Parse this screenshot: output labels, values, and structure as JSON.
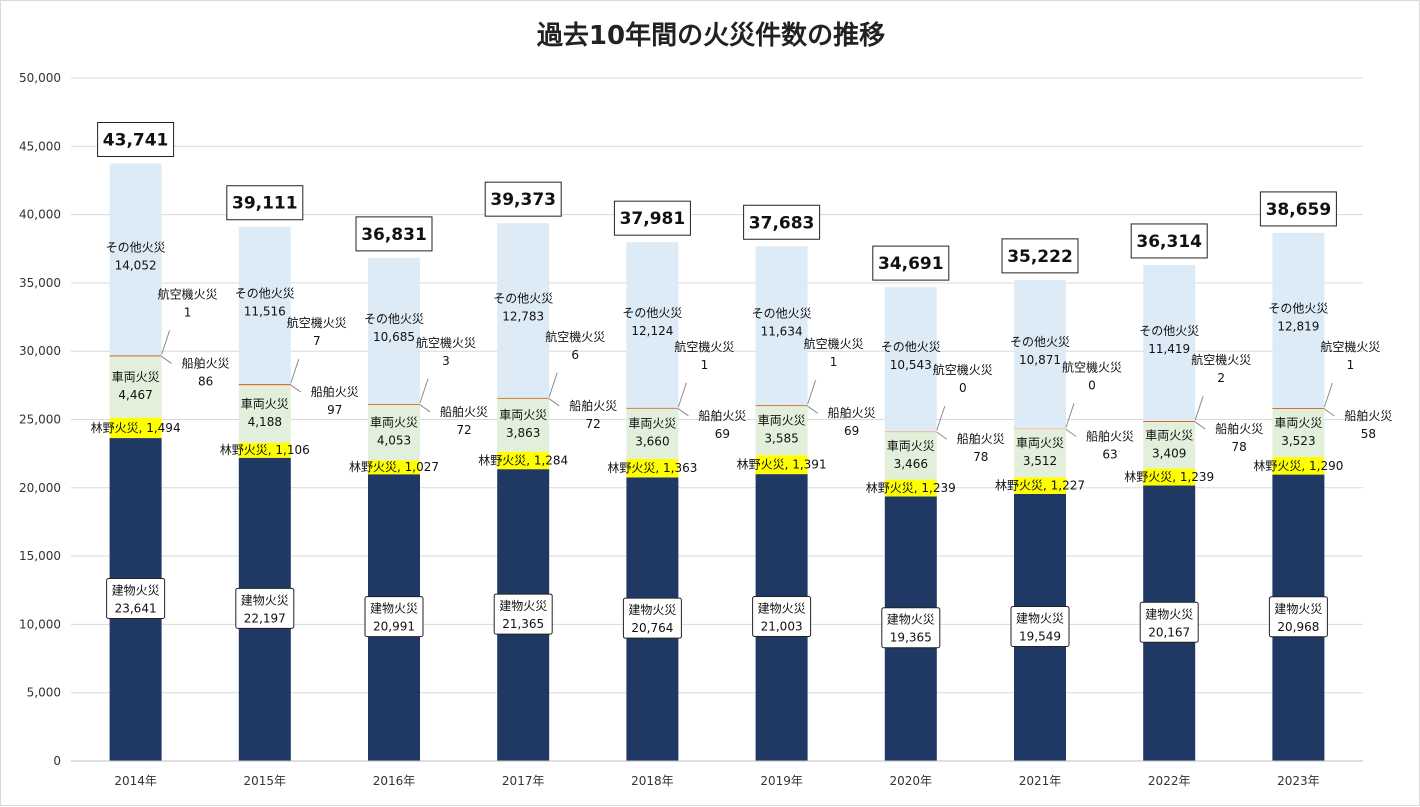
{
  "chart_data": {
    "type": "bar",
    "stacked": true,
    "title": "過去10年間の火災件数の推移",
    "categories": [
      "2014年",
      "2015年",
      "2016年",
      "2017年",
      "2018年",
      "2019年",
      "2020年",
      "2021年",
      "2022年",
      "2023年"
    ],
    "ylim": [
      0,
      50000
    ],
    "yticks": [
      "0",
      "5,000",
      "10,000",
      "15,000",
      "20,000",
      "25,000",
      "30,000",
      "35,000",
      "40,000",
      "45,000",
      "50,000"
    ],
    "grid": true,
    "series": [
      {
        "name": "建物火災",
        "values": [
          23641,
          22197,
          20991,
          21365,
          20764,
          21003,
          19365,
          19549,
          20167,
          20968
        ],
        "labels": [
          "23,641",
          "22,197",
          "20,991",
          "21,365",
          "20,764",
          "21,003",
          "19,365",
          "19,549",
          "20,167",
          "20,968"
        ],
        "color": "#1f3864"
      },
      {
        "name": "林野火災",
        "values": [
          1494,
          1106,
          1027,
          1284,
          1363,
          1391,
          1239,
          1227,
          1239,
          1290
        ],
        "labels": [
          "1,494",
          "1,106",
          "1,027",
          "1,284",
          "1,363",
          "1,391",
          "1,239",
          "1,227",
          "1,239",
          "1,290"
        ],
        "color": "#ffff00"
      },
      {
        "name": "車両火災",
        "values": [
          4467,
          4188,
          4053,
          3863,
          3660,
          3585,
          3466,
          3512,
          3409,
          3523
        ],
        "labels": [
          "4,467",
          "4,188",
          "4,053",
          "3,863",
          "3,660",
          "3,585",
          "3,466",
          "3,512",
          "3,409",
          "3,523"
        ],
        "color": "#e2efda"
      },
      {
        "name": "船舶火災",
        "values": [
          86,
          97,
          72,
          72,
          69,
          69,
          78,
          63,
          78,
          58
        ],
        "labels": [
          "86",
          "97",
          "72",
          "72",
          "69",
          "69",
          "78",
          "63",
          "78",
          "58"
        ],
        "color": "#f4b183"
      },
      {
        "name": "航空機火災",
        "values": [
          1,
          7,
          3,
          6,
          1,
          1,
          0,
          0,
          2,
          1
        ],
        "labels": [
          "1",
          "7",
          "3",
          "6",
          "1",
          "1",
          "0",
          "0",
          "2",
          "1"
        ],
        "color": "#c55a11"
      },
      {
        "name": "その他火災",
        "values": [
          14052,
          11516,
          10685,
          12783,
          12124,
          11634,
          10543,
          10871,
          11419,
          12819
        ],
        "labels": [
          "14,052",
          "11,516",
          "10,685",
          "12,783",
          "12,124",
          "11,634",
          "10,543",
          "10,871",
          "11,419",
          "12,819"
        ],
        "color": "#ddebf7"
      }
    ],
    "totals": [
      43741,
      39111,
      36831,
      39373,
      37981,
      37683,
      34691,
      35222,
      36314,
      38659
    ],
    "total_labels": [
      "43,741",
      "39,111",
      "36,831",
      "39,373",
      "37,981",
      "37,683",
      "34,691",
      "35,222",
      "36,314",
      "38,659"
    ]
  }
}
